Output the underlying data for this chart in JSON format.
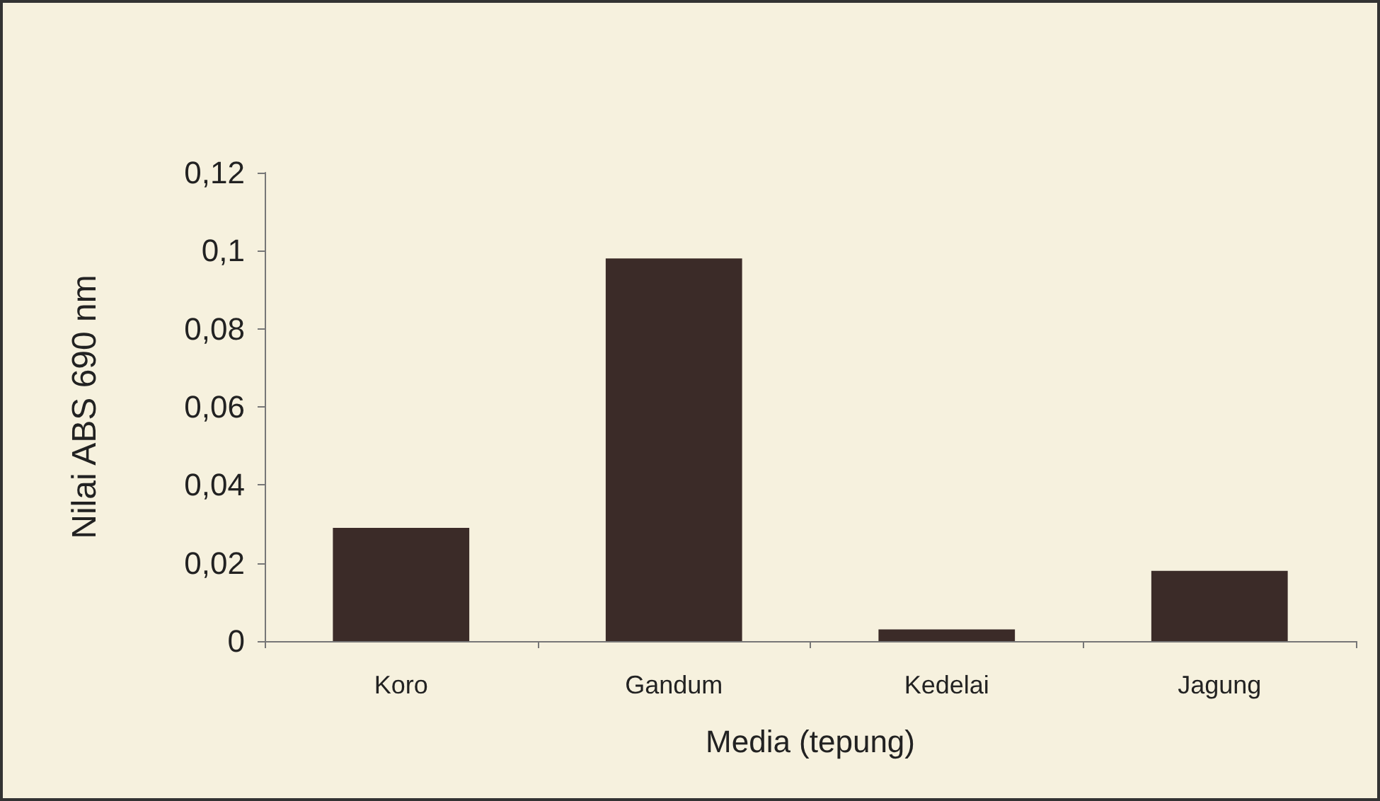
{
  "chart_data": {
    "type": "bar",
    "xlabel": "Media (tepung)",
    "ylabel": "Nilai ABS 690 nm",
    "categories": [
      "Koro",
      "Gandum",
      "Kedelai",
      "Jagung"
    ],
    "values": [
      0.029,
      0.098,
      0.003,
      0.018
    ],
    "color": "#3b2b28",
    "ylim": [
      0,
      0.12
    ],
    "yticks": [
      {
        "value": 0,
        "label": "0"
      },
      {
        "value": 0.02,
        "label": "0,02"
      },
      {
        "value": 0.04,
        "label": "0,04"
      },
      {
        "value": 0.06,
        "label": "0,06"
      },
      {
        "value": 0.08,
        "label": "0,08"
      },
      {
        "value": 0.1,
        "label": "0,1"
      },
      {
        "value": 0.12,
        "label": "0,12"
      }
    ],
    "grid": false
  }
}
